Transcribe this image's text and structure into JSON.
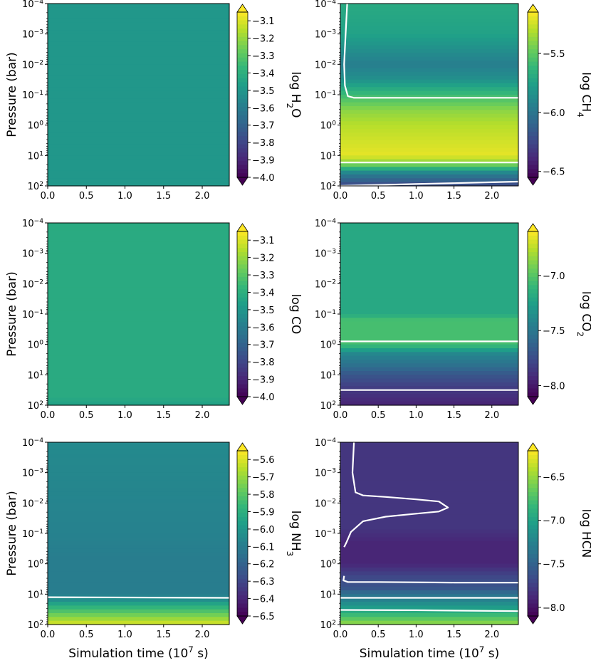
{
  "chart_data": [
    {
      "type": "heatmap",
      "panel": "top-left",
      "ylabel": "Pressure (bar)",
      "xlabel": "",
      "y_ticks": [
        {
          "base": "10",
          "exp": "−4"
        },
        {
          "base": "10",
          "exp": "−3"
        },
        {
          "base": "10",
          "exp": "−2"
        },
        {
          "base": "10",
          "exp": "−1"
        },
        {
          "base": "10",
          "exp": "0"
        },
        {
          "base": "10",
          "exp": "1"
        },
        {
          "base": "10",
          "exp": "2"
        }
      ],
      "x_ticks": [
        "0.0",
        "0.5",
        "1.0",
        "1.5",
        "2.0"
      ],
      "xlim": [
        0,
        2.35
      ],
      "ylim_log10_bar": [
        -4,
        2
      ],
      "colorbar": {
        "label": "log H",
        "sub": "2",
        "label_end": "O",
        "vmin": -4.0,
        "vmax": -3.05,
        "ticks": [
          "−3.1",
          "−3.2",
          "−3.3",
          "−3.4",
          "−3.5",
          "−3.6",
          "−3.7",
          "−3.8",
          "−3.9",
          "−4.0"
        ],
        "tick_values": [
          -3.1,
          -3.2,
          -3.3,
          -3.4,
          -3.5,
          -3.6,
          -3.7,
          -3.8,
          -3.9,
          -4.0
        ]
      },
      "profile_logP": [
        -4,
        2
      ],
      "profile_values": [
        -3.5,
        -3.5
      ],
      "contours": []
    },
    {
      "type": "heatmap",
      "panel": "top-right",
      "ylabel": "",
      "xlabel": "",
      "y_ticks": [
        {
          "base": "10",
          "exp": "−4"
        },
        {
          "base": "10",
          "exp": "−3"
        },
        {
          "base": "10",
          "exp": "−2"
        },
        {
          "base": "10",
          "exp": "−1"
        },
        {
          "base": "10",
          "exp": "0"
        },
        {
          "base": "10",
          "exp": "1"
        },
        {
          "base": "10",
          "exp": "2"
        }
      ],
      "x_ticks": [
        "0.0",
        "0.5",
        "1.0",
        "1.5",
        "2.0"
      ],
      "xlim": [
        0,
        2.35
      ],
      "ylim_log10_bar": [
        -4,
        2
      ],
      "colorbar": {
        "label": "log CH",
        "sub": "4",
        "label_end": "",
        "vmin": -6.55,
        "vmax": -5.15,
        "ticks": [
          "−5.5",
          "−6.0",
          "−6.5"
        ],
        "tick_values": [
          -5.5,
          -6.0,
          -6.5
        ]
      },
      "profile_logP": [
        -4,
        -3,
        -2,
        -1.5,
        -1,
        -0.5,
        0,
        0.5,
        1,
        1.3,
        1.6,
        2
      ],
      "profile_values": [
        -5.7,
        -5.75,
        -5.95,
        -5.85,
        -5.6,
        -5.4,
        -5.3,
        -5.25,
        -5.2,
        -5.45,
        -5.95,
        -6.25
      ],
      "contours": [
        {
          "x": [
            0.09,
            0.07,
            0.05,
            0.06,
            0.1,
            0.18,
            2.35
          ],
          "logP": [
            -4,
            -3,
            -2,
            -1.3,
            -0.95,
            -0.9,
            -0.9
          ]
        },
        {
          "x": [
            0.0,
            2.35
          ],
          "logP": [
            1.23,
            1.23
          ]
        },
        {
          "x": [
            0.0,
            0.5,
            1.0,
            1.5,
            2.0,
            2.35
          ],
          "logP": [
            2,
            1.97,
            1.94,
            1.91,
            1.88,
            1.86
          ]
        }
      ]
    },
    {
      "type": "heatmap",
      "panel": "mid-left",
      "ylabel": "Pressure (bar)",
      "xlabel": "",
      "y_ticks": [
        {
          "base": "10",
          "exp": "−4"
        },
        {
          "base": "10",
          "exp": "−3"
        },
        {
          "base": "10",
          "exp": "−2"
        },
        {
          "base": "10",
          "exp": "−1"
        },
        {
          "base": "10",
          "exp": "0"
        },
        {
          "base": "10",
          "exp": "1"
        },
        {
          "base": "10",
          "exp": "2"
        }
      ],
      "x_ticks": [
        "0.0",
        "0.5",
        "1.0",
        "1.5",
        "2.0"
      ],
      "xlim": [
        0,
        2.35
      ],
      "ylim_log10_bar": [
        -4,
        2
      ],
      "colorbar": {
        "label": "log CO",
        "sub": "",
        "label_end": "",
        "vmin": -4.0,
        "vmax": -3.05,
        "ticks": [
          "−3.1",
          "−3.2",
          "−3.3",
          "−3.4",
          "−3.5",
          "−3.6",
          "−3.7",
          "−3.8",
          "−3.9",
          "−4.0"
        ],
        "tick_values": [
          -3.1,
          -3.2,
          -3.3,
          -3.4,
          -3.5,
          -3.6,
          -3.7,
          -3.8,
          -3.9,
          -4.0
        ]
      },
      "profile_logP": [
        -4,
        1.7,
        1.85,
        2
      ],
      "profile_values": [
        -3.42,
        -3.42,
        -3.44,
        -3.46
      ],
      "contours": []
    },
    {
      "type": "heatmap",
      "panel": "mid-right",
      "ylabel": "",
      "xlabel": "",
      "y_ticks": [
        {
          "base": "10",
          "exp": "−4"
        },
        {
          "base": "10",
          "exp": "−3"
        },
        {
          "base": "10",
          "exp": "−2"
        },
        {
          "base": "10",
          "exp": "−1"
        },
        {
          "base": "10",
          "exp": "0"
        },
        {
          "base": "10",
          "exp": "1"
        },
        {
          "base": "10",
          "exp": "2"
        }
      ],
      "x_ticks": [
        "0.0",
        "0.5",
        "1.0",
        "1.5",
        "2.0"
      ],
      "xlim": [
        0,
        2.35
      ],
      "ylim_log10_bar": [
        -4,
        2
      ],
      "colorbar": {
        "label": "log CO",
        "sub": "2",
        "label_end": "",
        "vmin": -8.1,
        "vmax": -6.6,
        "ticks": [
          "−7.0",
          "−7.5",
          "−8.0"
        ],
        "tick_values": [
          -7.0,
          -7.5,
          -8.0
        ]
      },
      "profile_logP": [
        -4,
        -1,
        -0.8,
        0,
        0.3,
        0.7,
        1,
        1.5,
        2
      ],
      "profile_values": [
        -7.2,
        -7.2,
        -7.05,
        -7.05,
        -7.4,
        -7.55,
        -7.7,
        -7.85,
        -7.95
      ],
      "contours": [
        {
          "x": [
            0.0,
            2.35
          ],
          "logP": [
            -0.1,
            -0.1
          ]
        },
        {
          "x": [
            0.0,
            2.35
          ],
          "logP": [
            1.5,
            1.5
          ]
        }
      ]
    },
    {
      "type": "heatmap",
      "panel": "bottom-left",
      "ylabel": "Pressure (bar)",
      "xlabel": "Simulation time (10",
      "xlabel_exp": "7",
      "xlabel_end": " s)",
      "y_ticks": [
        {
          "base": "10",
          "exp": "−4"
        },
        {
          "base": "10",
          "exp": "−3"
        },
        {
          "base": "10",
          "exp": "−2"
        },
        {
          "base": "10",
          "exp": "−1"
        },
        {
          "base": "10",
          "exp": "0"
        },
        {
          "base": "10",
          "exp": "1"
        },
        {
          "base": "10",
          "exp": "2"
        }
      ],
      "x_ticks": [
        "0.0",
        "0.5",
        "1.0",
        "1.5",
        "2.0"
      ],
      "xlim": [
        0,
        2.35
      ],
      "ylim_log10_bar": [
        -4,
        2
      ],
      "colorbar": {
        "label": "log NH",
        "sub": "3",
        "label_end": "",
        "vmin": -6.5,
        "vmax": -5.55,
        "ticks": [
          "−5.6",
          "−5.7",
          "−5.8",
          "−5.9",
          "−6.0",
          "−6.1",
          "−6.2",
          "−6.3",
          "−6.4",
          "−6.5"
        ],
        "tick_values": [
          -5.6,
          -5.7,
          -5.8,
          -5.9,
          -6.0,
          -6.1,
          -6.2,
          -6.3,
          -6.4,
          -6.5
        ]
      },
      "profile_logP": [
        -4,
        -1,
        0,
        1,
        1.15,
        1.4,
        1.7,
        2
      ],
      "profile_values": [
        -6.05,
        -6.08,
        -6.1,
        -6.1,
        -6.05,
        -5.9,
        -5.75,
        -5.6
      ],
      "contours": [
        {
          "x": [
            0.0,
            2.35
          ],
          "logP": [
            1.1,
            1.12
          ]
        }
      ]
    },
    {
      "type": "heatmap",
      "panel": "bottom-right",
      "ylabel": "",
      "xlabel": "Simulation time (10",
      "xlabel_exp": "7",
      "xlabel_end": " s)",
      "y_ticks": [
        {
          "base": "10",
          "exp": "−4"
        },
        {
          "base": "10",
          "exp": "−3"
        },
        {
          "base": "10",
          "exp": "−2"
        },
        {
          "base": "10",
          "exp": "−1"
        },
        {
          "base": "10",
          "exp": "0"
        },
        {
          "base": "10",
          "exp": "1"
        },
        {
          "base": "10",
          "exp": "2"
        }
      ],
      "x_ticks": [
        "0.0",
        "0.5",
        "1.0",
        "1.5",
        "2.0"
      ],
      "xlim": [
        0,
        2.35
      ],
      "ylim_log10_bar": [
        -4,
        2
      ],
      "colorbar": {
        "label": "log HCN",
        "sub": "",
        "label_end": "",
        "vmin": -8.1,
        "vmax": -6.2,
        "ticks": [
          "−6.5",
          "−7.0",
          "−7.5",
          "−8.0"
        ],
        "tick_values": [
          -6.5,
          -7.0,
          -7.5,
          -8.0
        ]
      },
      "profile_logP": [
        -4,
        -1.2,
        -0.7,
        0,
        0.4,
        0.8,
        1,
        1.4,
        1.7,
        2
      ],
      "profile_values": [
        -7.8,
        -7.8,
        -7.9,
        -7.9,
        -7.7,
        -7.6,
        -7.4,
        -7.1,
        -6.8,
        -6.5
      ],
      "contours": [
        {
          "x": [
            0.18,
            0.16,
            0.2,
            0.3,
            0.6,
            1.0,
            1.3,
            1.42,
            1.3,
            1.0,
            0.6,
            0.3,
            0.14,
            0.08,
            0.05
          ],
          "logP": [
            -4,
            -3,
            -2.35,
            -2.25,
            -2.2,
            -2.12,
            -2.05,
            -1.85,
            -1.72,
            -1.65,
            -1.55,
            -1.4,
            -1.05,
            -0.7,
            -0.55
          ]
        },
        {
          "x": [
            0.05,
            0.04,
            0.1,
            0.5,
            1.0,
            1.5,
            2.0,
            2.35
          ],
          "logP": [
            0.4,
            0.55,
            0.6,
            0.6,
            0.61,
            0.62,
            0.62,
            0.62
          ]
        },
        {
          "x": [
            0.0,
            2.35
          ],
          "logP": [
            1.12,
            1.12
          ]
        },
        {
          "x": [
            0.0,
            1.0,
            2.35
          ],
          "logP": [
            1.52,
            1.53,
            1.56
          ]
        }
      ]
    }
  ]
}
